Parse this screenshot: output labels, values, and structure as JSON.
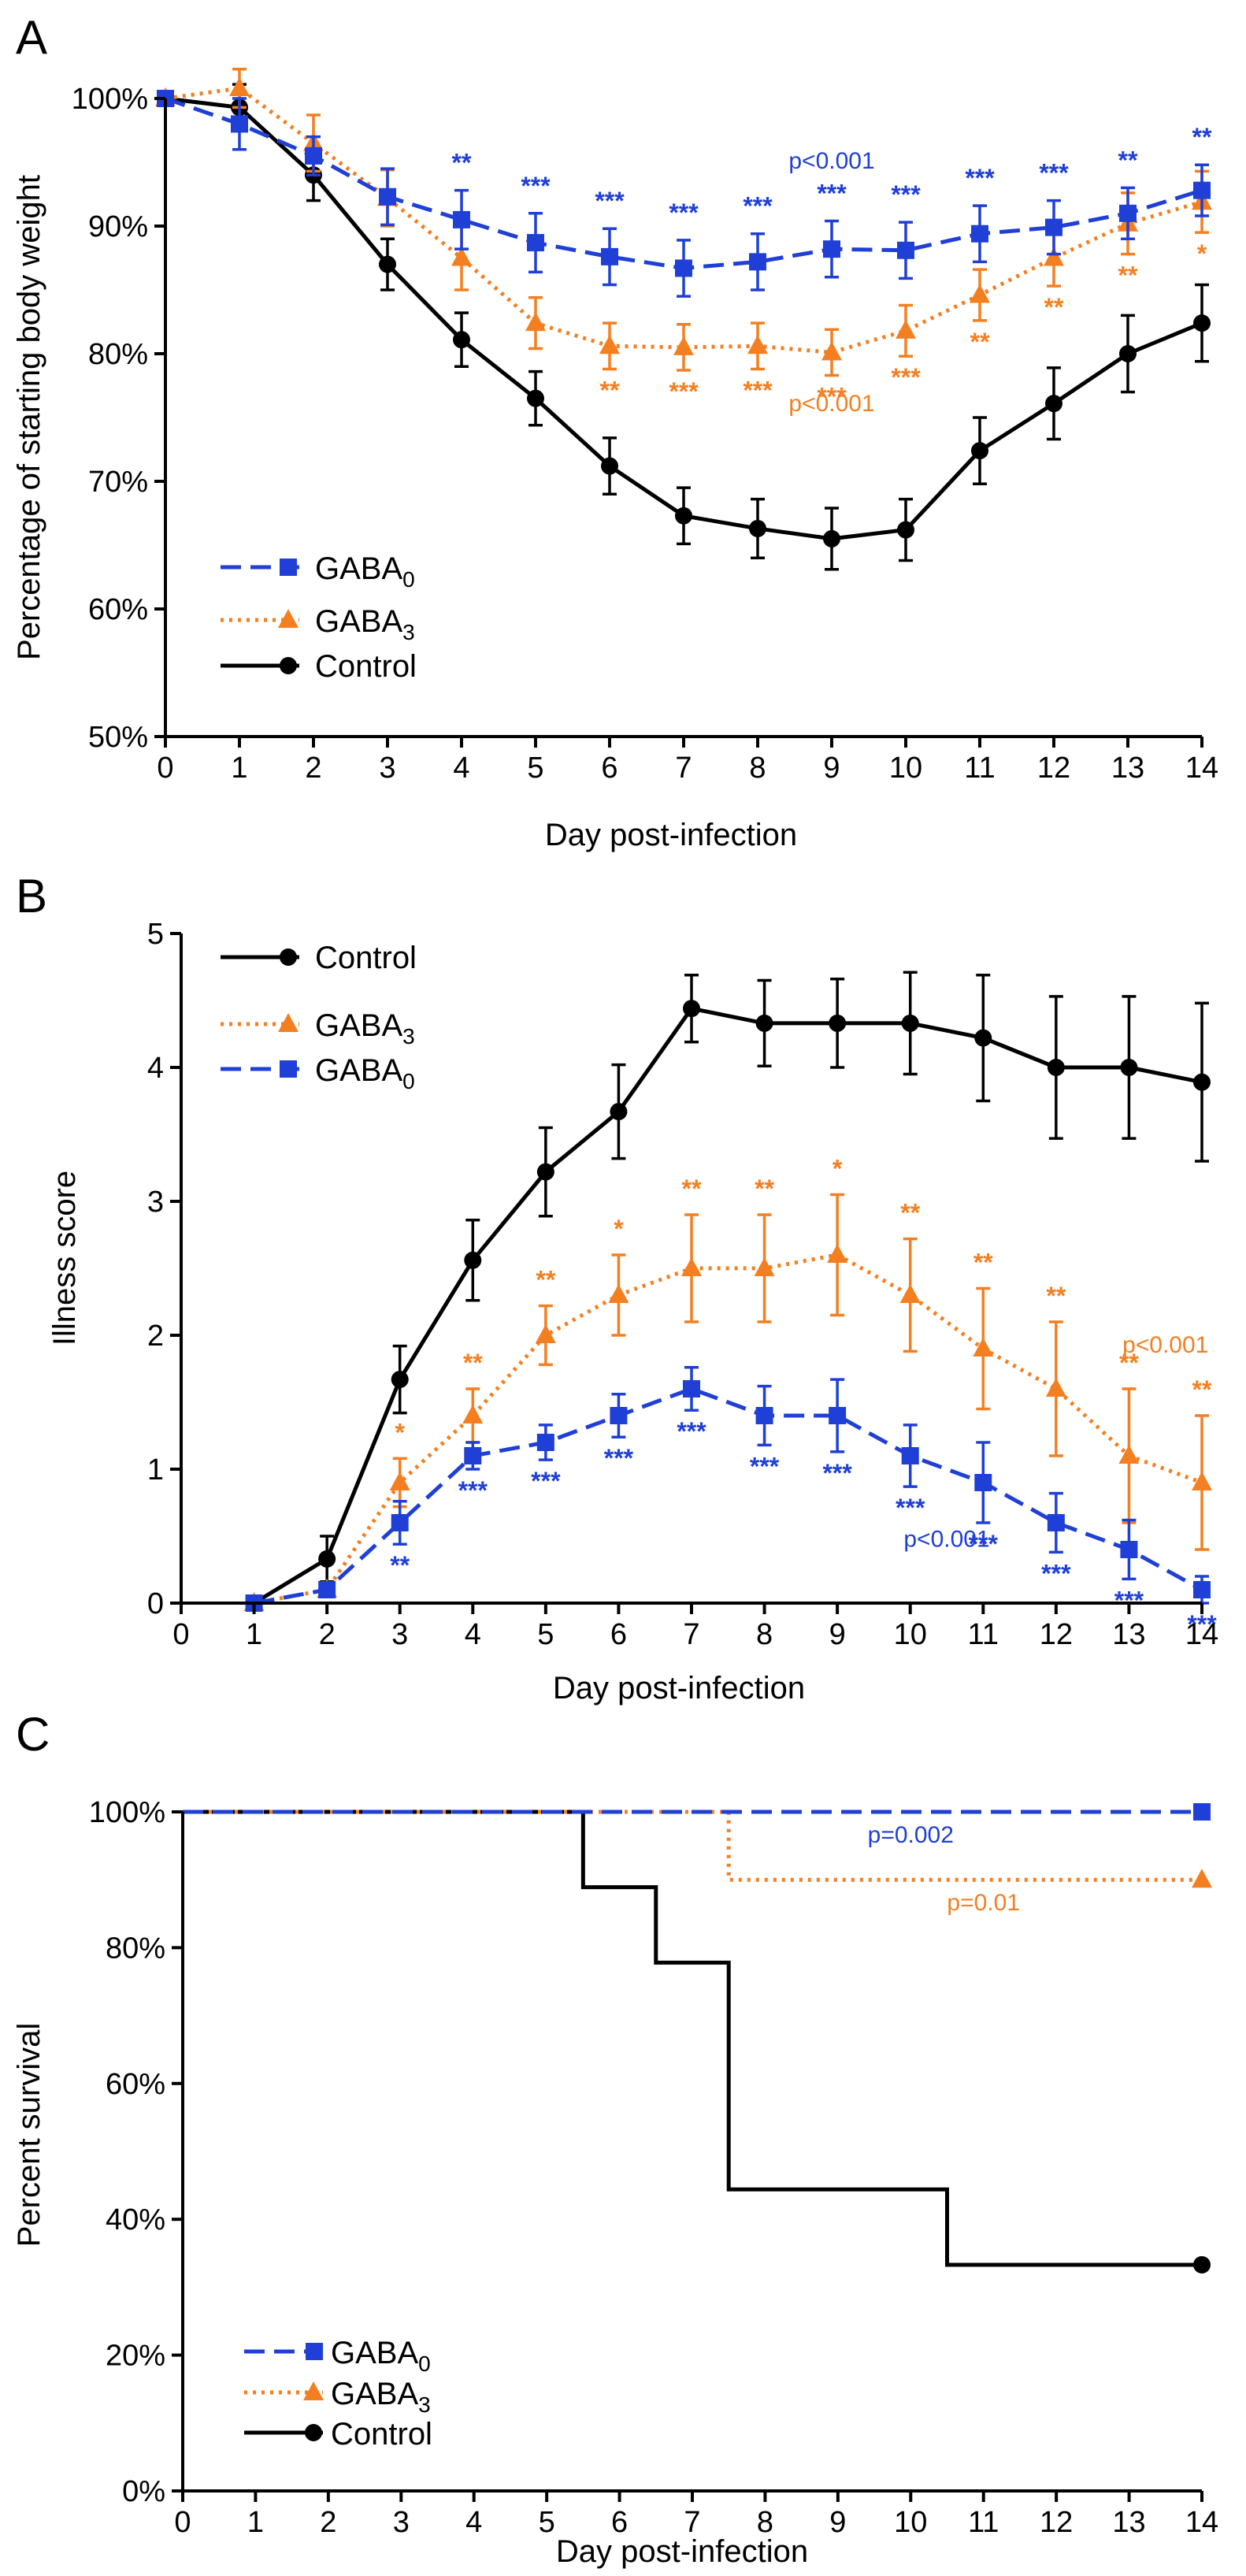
{
  "colors": {
    "gaba0": "#1f3fd6",
    "gaba3": "#f47f20",
    "control": "#000000"
  },
  "chart_data": [
    {
      "type": "line",
      "panel_label": "A",
      "xlabel": "Day post-infection",
      "ylabel": "Percentage of starting body weight",
      "xlim": [
        0,
        14
      ],
      "ylim": [
        50,
        100
      ],
      "x_ticks": [
        0,
        1,
        2,
        3,
        4,
        5,
        6,
        7,
        8,
        9,
        10,
        11,
        12,
        13,
        14
      ],
      "y_ticks": [
        50,
        60,
        70,
        80,
        90,
        100
      ],
      "y_tick_labels": [
        "50%",
        "60%",
        "70%",
        "80%",
        "90%",
        "100%"
      ],
      "x": [
        0,
        1,
        2,
        3,
        4,
        5,
        6,
        7,
        8,
        9,
        10,
        11,
        12,
        13,
        14
      ],
      "legend": [
        "GABA0",
        "GABA3",
        "Control"
      ],
      "series": [
        {
          "name": "GABA0",
          "key": "gaba0",
          "values": [
            100,
            98,
            95.5,
            92.3,
            90.5,
            88.7,
            87.6,
            86.7,
            87.2,
            88.2,
            88.1,
            89.4,
            89.9,
            91,
            92.8
          ],
          "errors": [
            0.5,
            2,
            1.5,
            2.2,
            2.3,
            2.3,
            2.2,
            2.2,
            2.2,
            2.2,
            2.2,
            2.2,
            2.1,
            2,
            2
          ]
        },
        {
          "name": "GABA3",
          "key": "gaba3",
          "values": [
            100,
            100.8,
            96.5,
            92.2,
            87.5,
            82.4,
            80.6,
            80.5,
            80.6,
            80.1,
            81.8,
            84.6,
            87.5,
            90.2,
            91.9
          ],
          "errors": [
            0.5,
            1.5,
            2.2,
            2.2,
            2.5,
            2,
            1.8,
            1.8,
            1.8,
            1.8,
            2,
            2,
            2.2,
            2.4,
            2.4
          ]
        },
        {
          "name": "Control",
          "key": "control",
          "values": [
            100,
            99.3,
            94,
            87,
            81.1,
            76.5,
            71.2,
            67.3,
            66.3,
            65.5,
            66.2,
            72.4,
            76.1,
            80,
            82.4
          ],
          "errors": [
            0.5,
            1.8,
            2,
            2,
            2.1,
            2.1,
            2.2,
            2.2,
            2.3,
            2.4,
            2.4,
            2.6,
            2.8,
            3,
            3
          ]
        }
      ],
      "annotations": [
        {
          "key": "gaba0",
          "points": [
            {
              "day": 4,
              "text": "**"
            },
            {
              "day": 5,
              "text": "***"
            },
            {
              "day": 6,
              "text": "***"
            },
            {
              "day": 7,
              "text": "***"
            },
            {
              "day": 8,
              "text": "***"
            },
            {
              "day": 9,
              "text": "***"
            },
            {
              "day": 10,
              "text": "***"
            },
            {
              "day": 11,
              "text": "***"
            },
            {
              "day": 12,
              "text": "***"
            },
            {
              "day": 13,
              "text": "**"
            },
            {
              "day": 14,
              "text": "**"
            }
          ]
        },
        {
          "key": "gaba3",
          "points": [
            {
              "day": 6,
              "text": "**"
            },
            {
              "day": 7,
              "text": "***"
            },
            {
              "day": 8,
              "text": "***"
            },
            {
              "day": 9,
              "text": "***"
            },
            {
              "day": 10,
              "text": "***"
            },
            {
              "day": 11,
              "text": "**"
            },
            {
              "day": 12,
              "text": "**"
            },
            {
              "day": 13,
              "text": "**"
            },
            {
              "day": 14,
              "text": "*"
            }
          ]
        }
      ],
      "pvalues": [
        {
          "key": "gaba0",
          "text": "p<0.001",
          "x": 9,
          "y": 94.5
        },
        {
          "key": "gaba3",
          "text": "p<0.001",
          "x": 9,
          "y": 75.5
        }
      ]
    },
    {
      "type": "line",
      "panel_label": "B",
      "xlabel": "Day post-infection",
      "ylabel": "Illness score",
      "xlim": [
        0,
        14
      ],
      "ylim": [
        0,
        5
      ],
      "x_ticks": [
        0,
        1,
        2,
        3,
        4,
        5,
        6,
        7,
        8,
        9,
        10,
        11,
        12,
        13,
        14
      ],
      "y_ticks": [
        0,
        1,
        2,
        3,
        4,
        5
      ],
      "y_tick_labels": [
        "0",
        "1",
        "2",
        "3",
        "4",
        "5"
      ],
      "x": [
        1,
        2,
        3,
        4,
        5,
        6,
        7,
        8,
        9,
        10,
        11,
        12,
        13,
        14
      ],
      "legend": [
        "Control",
        "GABA3",
        "GABA0"
      ],
      "series": [
        {
          "name": "Control",
          "key": "control",
          "values": [
            0,
            0.33,
            1.67,
            2.56,
            3.22,
            3.67,
            4.44,
            4.33,
            4.33,
            4.33,
            4.22,
            4,
            4,
            3.89
          ],
          "errors": [
            0,
            0.17,
            0.25,
            0.3,
            0.33,
            0.35,
            0.25,
            0.32,
            0.33,
            0.38,
            0.47,
            0.53,
            0.53,
            0.59
          ]
        },
        {
          "name": "GABA3",
          "key": "gaba3",
          "values": [
            0,
            0.1,
            0.9,
            1.4,
            2,
            2.3,
            2.5,
            2.5,
            2.6,
            2.3,
            1.9,
            1.6,
            1.1,
            0.9
          ],
          "errors": [
            0,
            0.05,
            0.18,
            0.2,
            0.22,
            0.3,
            0.4,
            0.4,
            0.45,
            0.42,
            0.45,
            0.5,
            0.5,
            0.5
          ]
        },
        {
          "name": "GABA0",
          "key": "gaba0",
          "values": [
            0,
            0.1,
            0.6,
            1.1,
            1.2,
            1.4,
            1.6,
            1.4,
            1.4,
            1.1,
            0.9,
            0.6,
            0.4,
            0.1
          ],
          "errors": [
            0,
            0.05,
            0.16,
            0.1,
            0.13,
            0.16,
            0.16,
            0.22,
            0.27,
            0.23,
            0.3,
            0.22,
            0.22,
            0.1
          ]
        }
      ],
      "annotations": [
        {
          "key": "gaba3",
          "points": [
            {
              "day": 3,
              "text": "*"
            },
            {
              "day": 4,
              "text": "**"
            },
            {
              "day": 5,
              "text": "**"
            },
            {
              "day": 6,
              "text": "*"
            },
            {
              "day": 7,
              "text": "**"
            },
            {
              "day": 8,
              "text": "**"
            },
            {
              "day": 9,
              "text": "*"
            },
            {
              "day": 10,
              "text": "**"
            },
            {
              "day": 11,
              "text": "**"
            },
            {
              "day": 12,
              "text": "**"
            },
            {
              "day": 13,
              "text": "**"
            },
            {
              "day": 14,
              "text": "**"
            }
          ]
        },
        {
          "key": "gaba0",
          "points": [
            {
              "day": 3,
              "text": "**"
            },
            {
              "day": 4,
              "text": "***"
            },
            {
              "day": 5,
              "text": "***"
            },
            {
              "day": 6,
              "text": "***"
            },
            {
              "day": 7,
              "text": "***"
            },
            {
              "day": 8,
              "text": "***"
            },
            {
              "day": 9,
              "text": "***"
            },
            {
              "day": 10,
              "text": "***"
            },
            {
              "day": 11,
              "text": "***"
            },
            {
              "day": 12,
              "text": "***"
            },
            {
              "day": 13,
              "text": "***"
            },
            {
              "day": 14,
              "text": "***"
            }
          ]
        }
      ],
      "pvalues": [
        {
          "key": "gaba3",
          "text": "p<0.001",
          "x": 13.5,
          "y": 1.87
        },
        {
          "key": "gaba0",
          "text": "p<0.001",
          "x": 10.5,
          "y": 0.42
        }
      ]
    },
    {
      "type": "step",
      "panel_label": "C",
      "xlabel": "Day post-infection",
      "ylabel": "Percent survival",
      "xlim": [
        0,
        14
      ],
      "ylim": [
        0,
        100
      ],
      "x_ticks": [
        0,
        1,
        2,
        3,
        4,
        5,
        6,
        7,
        8,
        9,
        10,
        11,
        12,
        13,
        14
      ],
      "y_ticks": [
        0,
        20,
        40,
        60,
        80,
        100
      ],
      "y_tick_labels": [
        "0%",
        "20%",
        "40%",
        "60%",
        "80%",
        "100%"
      ],
      "legend": [
        "GABA0",
        "GABA3",
        "Control"
      ],
      "series": [
        {
          "name": "GABA0",
          "key": "gaba0",
          "x": [
            0,
            14
          ],
          "values": [
            100,
            100
          ]
        },
        {
          "name": "GABA3",
          "key": "gaba3",
          "x": [
            0,
            7.5,
            14
          ],
          "values": [
            100,
            90,
            90
          ]
        },
        {
          "name": "Control",
          "key": "control",
          "x": [
            0,
            5.5,
            6.5,
            7.5,
            10.5,
            14
          ],
          "values": [
            100,
            88.9,
            77.8,
            44.4,
            33.3,
            33.3
          ]
        }
      ],
      "pvalues": [
        {
          "key": "gaba0",
          "text": "p=0.002",
          "x": 10,
          "y": 95.5
        },
        {
          "key": "gaba3",
          "text": "p=0.01",
          "x": 11,
          "y": 85.5
        }
      ]
    }
  ]
}
